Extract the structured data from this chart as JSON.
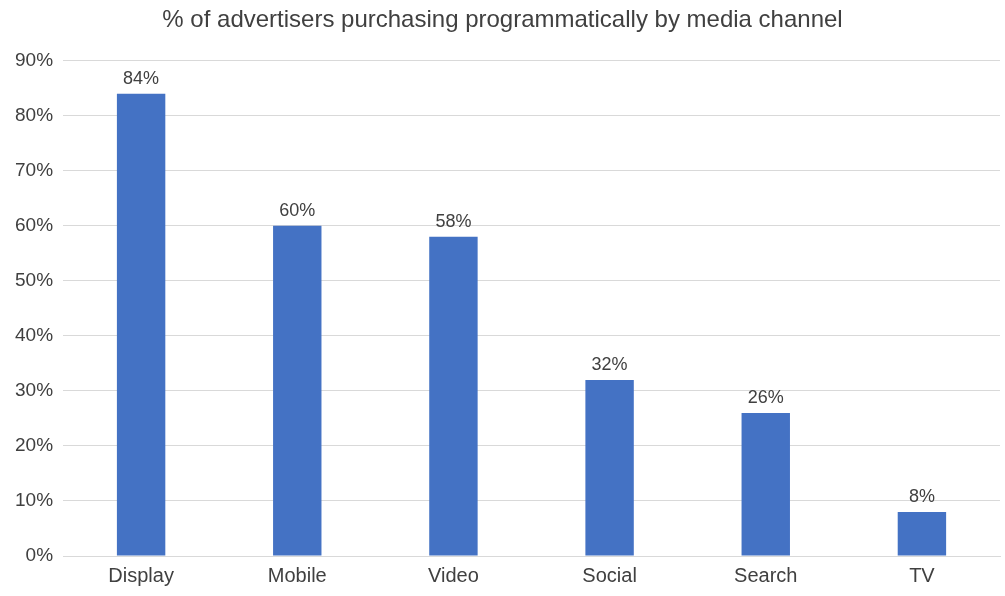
{
  "chart_data": {
    "type": "bar",
    "title": "% of advertisers purchasing programmatically by media channel",
    "categories": [
      "Display",
      "Mobile",
      "Video",
      "Social",
      "Search",
      "TV"
    ],
    "values": [
      84,
      60,
      58,
      32,
      26,
      8
    ],
    "color": "#4472c4",
    "value_labels": [
      "84%",
      "60%",
      "58%",
      "32%",
      "26%",
      "8%"
    ],
    "ylim": [
      0,
      90
    ],
    "yticks": [
      {
        "value": 0,
        "label": "0%"
      },
      {
        "value": 10,
        "label": "10%"
      },
      {
        "value": 20,
        "label": "20%"
      },
      {
        "value": 30,
        "label": "30%"
      },
      {
        "value": 40,
        "label": "40%"
      },
      {
        "value": 50,
        "label": "50%"
      },
      {
        "value": 60,
        "label": "60%"
      },
      {
        "value": 70,
        "label": "70%"
      },
      {
        "value": 80,
        "label": "80%"
      },
      {
        "value": 90,
        "label": "90%"
      }
    ],
    "grid": "y",
    "legend": false
  }
}
